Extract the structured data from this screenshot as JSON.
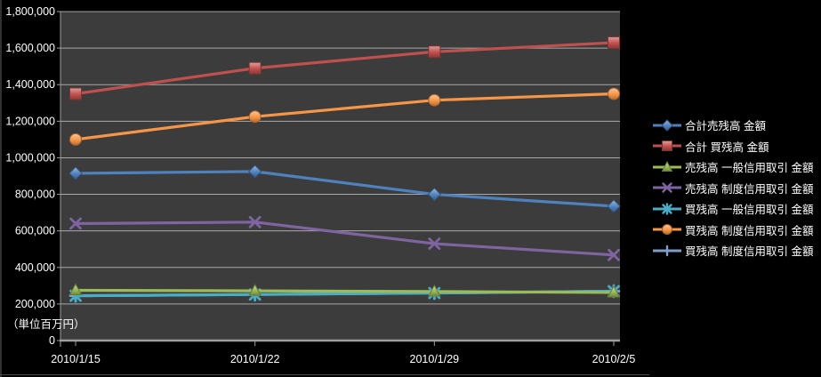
{
  "chart_data": {
    "type": "line",
    "title": "",
    "xlabel": "",
    "ylabel": "",
    "unit_note": "（単位百万円）",
    "categories": [
      "2010/1/15",
      "2010/1/22",
      "2010/1/29",
      "2010/2/5"
    ],
    "series": [
      {
        "name": "合計売残高 金額",
        "marker": "diamond",
        "color": "#4F81BD",
        "values": [
          915000,
          925000,
          800000,
          735000
        ]
      },
      {
        "name": "合計 買残高 金額",
        "marker": "square",
        "color": "#C0504D",
        "values": [
          1350000,
          1490000,
          1580000,
          1630000
        ]
      },
      {
        "name": "売残高 一般信用取引 金額",
        "marker": "triangle",
        "color": "#9BBB59",
        "values": [
          275000,
          272000,
          268000,
          263000
        ]
      },
      {
        "name": "売残高 制度信用取引 金額",
        "marker": "x",
        "color": "#8064A2",
        "values": [
          640000,
          648000,
          530000,
          468000
        ]
      },
      {
        "name": "買残高 一般信用取引 金額",
        "marker": "star",
        "color": "#4BACC6",
        "values": [
          245000,
          252000,
          260000,
          270000
        ]
      },
      {
        "name": "買残高 制度信用取引 金額",
        "marker": "circle",
        "color": "#F79646",
        "values": [
          1100000,
          1225000,
          1315000,
          1350000
        ]
      },
      {
        "name": "買残高 制度信用取引 金額",
        "marker": "plus",
        "color": "#7F9DC9",
        "values": [
          245000,
          252000,
          260000,
          270000
        ]
      }
    ],
    "ylim": [
      0,
      1800000
    ],
    "ytick_step": 200000,
    "ytick_labels": [
      "0",
      "200,000",
      "400,000",
      "600,000",
      "800,000",
      "1,000,000",
      "1,200,000",
      "1,400,000",
      "1,600,000",
      "1,800,000"
    ],
    "grid": true,
    "legend_position": "right",
    "colors": {
      "background": "#000000",
      "plot_background": "#3C3C3C",
      "gridline": "#BDBDBD",
      "axis_line": "#9E9E9E",
      "text": "#FFFFFF"
    }
  }
}
